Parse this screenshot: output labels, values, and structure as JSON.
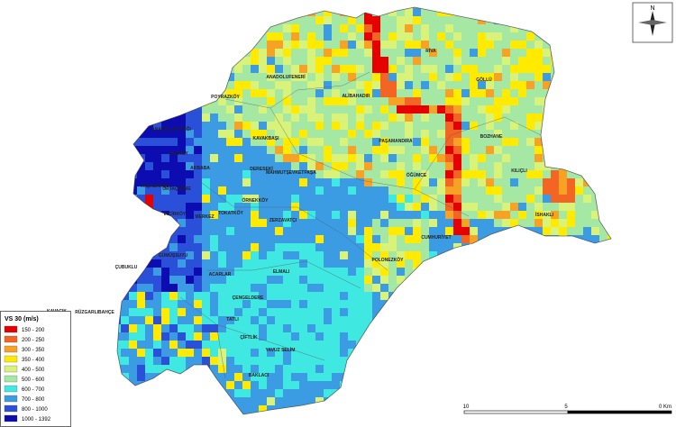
{
  "legend": {
    "title": "VS 30 (m/s)",
    "items": [
      {
        "label": "150 - 200",
        "color": "#e60000"
      },
      {
        "label": "200 - 250",
        "color": "#f26522"
      },
      {
        "label": "300 - 350",
        "color": "#f7a125"
      },
      {
        "label": "350 - 400",
        "color": "#ffea00"
      },
      {
        "label": "400 - 500",
        "color": "#d9f27a"
      },
      {
        "label": "500 - 600",
        "color": "#a4e8a4"
      },
      {
        "label": "600 - 700",
        "color": "#3fe8e0"
      },
      {
        "label": "700 - 800",
        "color": "#3b9ce3"
      },
      {
        "label": "800 - 1000",
        "color": "#2a4fd8"
      },
      {
        "label": "1000 - 1392",
        "color": "#0c0cb0"
      }
    ]
  },
  "map_labels": [
    "ANADOLUFENERİ",
    "POYRAZKÖY",
    "ALİBAHADIR",
    "RİVA",
    "GÖLLÜ",
    "PAŞAMANDIRA",
    "BOZHANE",
    "KILIÇLI",
    "ÖĞÜMCE",
    "İSHAKLI",
    "CUMHURİYET",
    "POLONEZKÖY",
    "MAHMUTŞEVKETPAŞA",
    "ANADOLUKAVAĞI",
    "YALIKÖY",
    "AKBABA",
    "KAVAKBAŞI",
    "DERESEKİ",
    "PAŞABAHÇE",
    "ORTAÇEŞME",
    "ÖRNEKKÖY",
    "TOKATKÖY",
    "MERKEZ",
    "ZERZAVATÇI",
    "İNCİRKÖY",
    "GÜMÜŞSUYU",
    "ÇUBUKLU",
    "ACARLAR",
    "ELMALI",
    "ÇENGELDERE",
    "KAVACIK",
    "RÜZGARLIBAHÇE",
    "ANADOLUHİSARI",
    "GÖZTEPE",
    "TATLI",
    "ÇİFTLİK",
    "YENİMAHALLE",
    "YAVUZ SELİM",
    "BAKLACI"
  ],
  "scale": {
    "labels": [
      "10",
      "5",
      "0 Km"
    ]
  },
  "north": "N"
}
